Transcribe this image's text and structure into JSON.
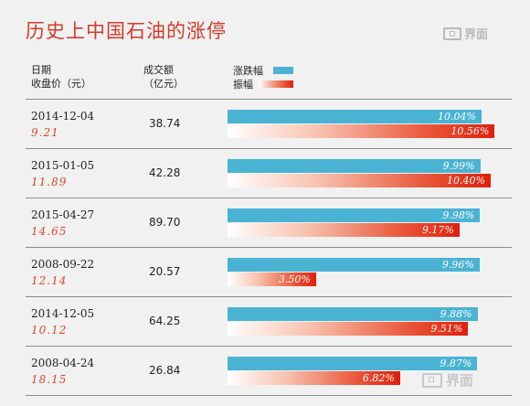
{
  "header": {
    "title": "历史上中国石油的涨停",
    "logo_text": "界面",
    "col_date_line1": "日期",
    "col_date_line2": "收盘价（元）",
    "col_vol_line1": "成交额",
    "col_vol_line2": "（亿元）",
    "legend_change": "涨跌幅",
    "legend_amp": "振幅"
  },
  "colors": {
    "title": "#d43a2a",
    "change_bar": "#4ab3d3",
    "amp_bar_end": "#df1f0b",
    "close_price": "#d9472a"
  },
  "watermark_text": "界面",
  "chart_data": {
    "type": "bar",
    "title": "历史上中国石油的涨停",
    "series": [
      {
        "name": "涨跌幅",
        "unit": "%"
      },
      {
        "name": "振幅",
        "unit": "%"
      }
    ],
    "rows": [
      {
        "date": "2014-12-04",
        "close": "9.21",
        "volume": "38.74",
        "change": 10.04,
        "change_label": "10.04%",
        "amp": 10.56,
        "amp_label": "10.56%"
      },
      {
        "date": "2015-01-05",
        "close": "11.89",
        "volume": "42.28",
        "change": 9.99,
        "change_label": "9.99%",
        "amp": 10.4,
        "amp_label": "10.40%"
      },
      {
        "date": "2015-04-27",
        "close": "14.65",
        "volume": "89.70",
        "change": 9.98,
        "change_label": "9.98%",
        "amp": 9.17,
        "amp_label": "9.17%"
      },
      {
        "date": "2008-09-22",
        "close": "12.14",
        "volume": "20.57",
        "change": 9.96,
        "change_label": "9.96%",
        "amp": 3.5,
        "amp_label": "3.50%"
      },
      {
        "date": "2014-12-05",
        "close": "10.12",
        "volume": "64.25",
        "change": 9.88,
        "change_label": "9.88%",
        "amp": 9.51,
        "amp_label": "9.51%"
      },
      {
        "date": "2008-04-24",
        "close": "18.15",
        "volume": "26.84",
        "change": 9.87,
        "change_label": "9.87%",
        "amp": 6.82,
        "amp_label": "6.82%"
      }
    ]
  }
}
